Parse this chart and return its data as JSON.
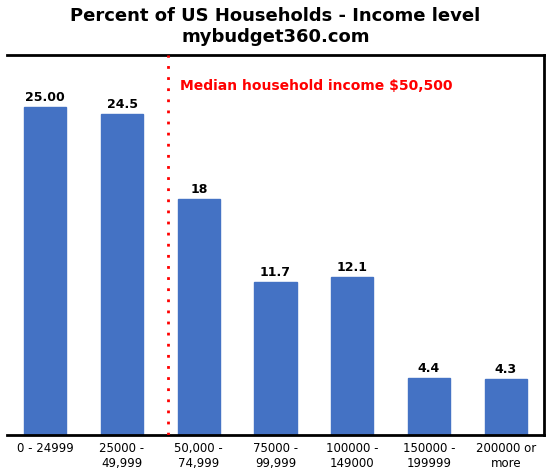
{
  "title_line1": "Percent of US Households - Income level",
  "title_line2": "mybudget360.com",
  "categories": [
    "0 - 24999",
    "25000 -\n49,999",
    "50,000 -\n74,999",
    "75000 -\n99,999",
    "100000 -\n149000",
    "150000 -\n199999",
    "200000 or\nmore"
  ],
  "values": [
    25.0,
    24.5,
    18,
    11.7,
    12.1,
    4.4,
    4.3
  ],
  "bar_color": "#4472C4",
  "median_line_x": 1.6,
  "median_label": "Median household income $50,500",
  "median_color": "red",
  "ylim": [
    0,
    29
  ],
  "value_labels": [
    "25.00",
    "24.5",
    "18",
    "11.7",
    "12.1",
    "4.4",
    "4.3"
  ],
  "title_fontsize": 13,
  "tick_fontsize": 8.5,
  "value_fontsize": 9,
  "median_fontsize": 10,
  "bar_width": 0.55,
  "figure_bg": "#ffffff",
  "axes_bg": "#ffffff",
  "border_color": "#000000"
}
